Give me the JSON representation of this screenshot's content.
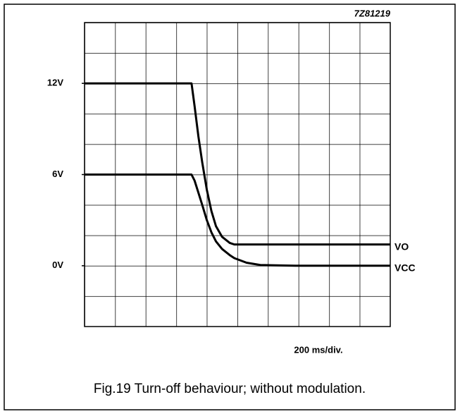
{
  "chart_data": {
    "type": "line",
    "code": "7Z81219",
    "title": "Fig.19  Turn-off behaviour; without modulation.",
    "x_label": "200 ms/div.",
    "xlim": [
      0,
      2000
    ],
    "ylim": [
      -4,
      16
    ],
    "yticks": [
      {
        "value": 12,
        "label": "12V"
      },
      {
        "value": 6,
        "label": "6V"
      },
      {
        "value": 0,
        "label": "0V"
      }
    ],
    "x": [
      0,
      700,
      720,
      745,
      770,
      800,
      830,
      860,
      900,
      950,
      980,
      1060,
      1150,
      1380,
      2000
    ],
    "series": [
      {
        "name": "VO",
        "color": "#000000",
        "values": [
          12,
          12,
          10.5,
          8.5,
          6.8,
          5,
          3.6,
          2.6,
          1.9,
          1.5,
          1.4,
          1.4,
          1.4,
          1.4,
          1.4
        ]
      },
      {
        "name": "VCC",
        "color": "#000000",
        "values": [
          6,
          6,
          5.6,
          4.8,
          4,
          3,
          2.2,
          1.6,
          1.1,
          0.7,
          0.5,
          0.2,
          0.05,
          0,
          0
        ]
      }
    ]
  }
}
